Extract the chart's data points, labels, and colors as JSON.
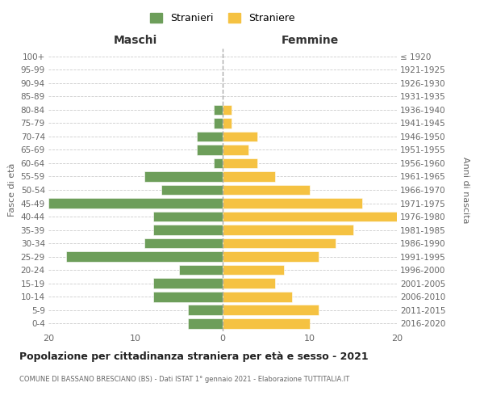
{
  "age_groups": [
    "0-4",
    "5-9",
    "10-14",
    "15-19",
    "20-24",
    "25-29",
    "30-34",
    "35-39",
    "40-44",
    "45-49",
    "50-54",
    "55-59",
    "60-64",
    "65-69",
    "70-74",
    "75-79",
    "80-84",
    "85-89",
    "90-94",
    "95-99",
    "100+"
  ],
  "birth_years": [
    "2016-2020",
    "2011-2015",
    "2006-2010",
    "2001-2005",
    "1996-2000",
    "1991-1995",
    "1986-1990",
    "1981-1985",
    "1976-1980",
    "1971-1975",
    "1966-1970",
    "1961-1965",
    "1956-1960",
    "1951-1955",
    "1946-1950",
    "1941-1945",
    "1936-1940",
    "1931-1935",
    "1926-1930",
    "1921-1925",
    "≤ 1920"
  ],
  "maschi": [
    4,
    4,
    8,
    8,
    5,
    18,
    9,
    8,
    8,
    20,
    7,
    9,
    1,
    3,
    3,
    1,
    1,
    0,
    0,
    0,
    0
  ],
  "femmine": [
    10,
    11,
    8,
    6,
    7,
    11,
    13,
    15,
    20,
    16,
    10,
    6,
    4,
    3,
    4,
    1,
    1,
    0,
    0,
    0,
    0
  ],
  "color_maschi": "#6d9e5a",
  "color_femmine": "#f5c242",
  "title": "Popolazione per cittadinanza straniera per età e sesso - 2021",
  "subtitle": "COMUNE DI BASSANO BRESCIANO (BS) - Dati ISTAT 1° gennaio 2021 - Elaborazione TUTTITALIA.IT",
  "xlabel_left": "Maschi",
  "xlabel_right": "Femmine",
  "ylabel_left": "Fasce di età",
  "ylabel_right": "Anni di nascita",
  "legend_maschi": "Stranieri",
  "legend_femmine": "Straniere",
  "xlim": 20,
  "background_color": "#ffffff",
  "grid_color": "#cccccc"
}
